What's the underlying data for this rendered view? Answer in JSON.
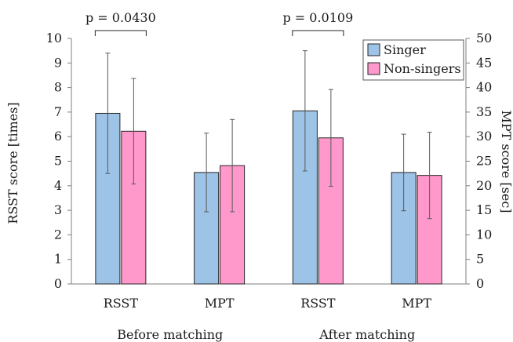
{
  "chart_data": {
    "type": "bar",
    "title": "",
    "groups": [
      {
        "label": "Before matching",
        "categories": [
          "RSST",
          "MPT"
        ]
      },
      {
        "label": "After matching",
        "categories": [
          "RSST",
          "MPT"
        ]
      }
    ],
    "x_labels": [
      "RSST",
      "MPT",
      "RSST",
      "MPT"
    ],
    "series": [
      {
        "name": "Singer",
        "color": "#9dc3e6",
        "values": [
          6.95,
          22.7,
          7.05,
          22.7
        ],
        "errors": [
          2.45,
          8.0,
          2.45,
          7.8
        ]
      },
      {
        "name": "Non-singers",
        "color": "#ff99cc",
        "values": [
          6.22,
          24.1,
          5.95,
          22.1
        ],
        "errors": [
          2.15,
          9.4,
          1.97,
          8.8
        ]
      }
    ],
    "value_axis": [
      "left",
      "right",
      "left",
      "right"
    ],
    "ylabel": "RSST score [times]",
    "ylim": [
      0,
      10
    ],
    "yticks": [
      "0",
      "1",
      "2",
      "3",
      "4",
      "5",
      "6",
      "7",
      "8",
      "9",
      "10"
    ],
    "y2label": "MPT score [sec]",
    "y2lim": [
      0,
      50
    ],
    "y2ticks": [
      "0",
      "5",
      "10",
      "15",
      "20",
      "25",
      "30",
      "35",
      "40",
      "45",
      "50"
    ],
    "annotations": [
      {
        "text": "p = 0.0430",
        "x_index": 0
      },
      {
        "text": "p = 0.0109",
        "x_index": 2
      }
    ],
    "legend_position": "top-right",
    "grid": false
  }
}
